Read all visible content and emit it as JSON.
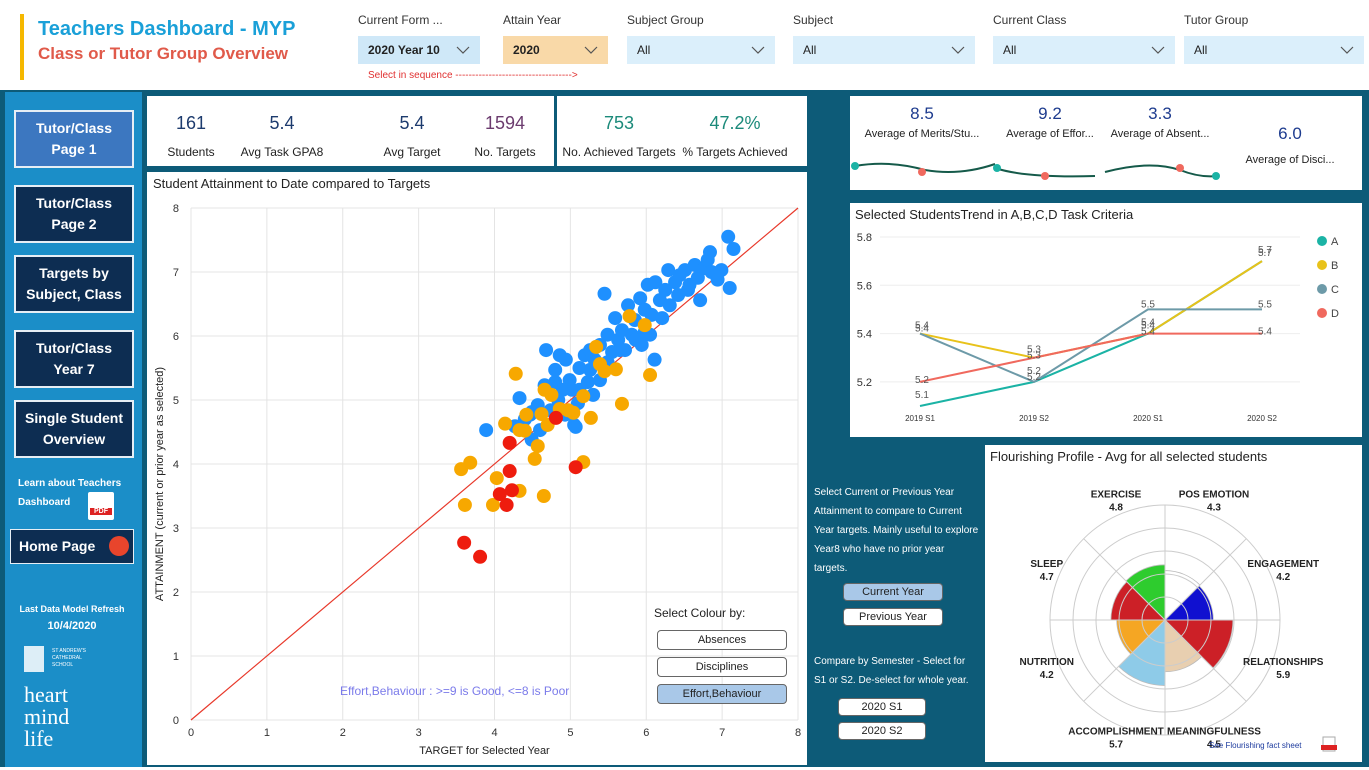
{
  "header": {
    "title": "Teachers Dashboard - MYP",
    "subtitle": "Class or Tutor Group Overview",
    "hint": "Select in sequence ----------------------------------->"
  },
  "filters": [
    {
      "label": "Current Form ...",
      "value": "2020 Year 10"
    },
    {
      "label": "Attain Year",
      "value": "2020"
    },
    {
      "label": "Subject Group",
      "value": "All"
    },
    {
      "label": "Subject",
      "value": "All"
    },
    {
      "label": "Current Class",
      "value": "All"
    },
    {
      "label": "Tutor Group",
      "value": "All"
    }
  ],
  "nav": {
    "buttons": [
      "Tutor/Class Page 1",
      "Tutor/Class Page 2",
      "Targets by Subject, Class",
      "Tutor/Class Year 7",
      "Single Student Overview"
    ],
    "learn": "Learn about Teachers Dashboard",
    "pdf": "PDF",
    "home": "Home Page",
    "refresh_label": "Last Data Model Refresh",
    "refresh_date": "10/4/2020",
    "school": "ST ANDREW'S CATHEDRAL SCHOOL",
    "motto": "heart mind life"
  },
  "kpis": [
    {
      "value": "161",
      "label": "Students"
    },
    {
      "value": "5.4",
      "label": "Avg Task GPA8"
    },
    {
      "value": "5.4",
      "label": "Avg Target"
    },
    {
      "value": "1594",
      "label": "No. Targets"
    },
    {
      "value": "753",
      "label": "No. Achieved Targets"
    },
    {
      "value": "47.2%",
      "label": "% Targets Achieved"
    }
  ],
  "kpis_right": [
    {
      "value": "8.5",
      "label": "Average of Merits/Stu..."
    },
    {
      "value": "9.2",
      "label": "Average of Effor..."
    },
    {
      "value": "3.3",
      "label": "Average of Absent..."
    },
    {
      "value": "6.0",
      "label": "Average of Disci..."
    }
  ],
  "controls": {
    "year_text": "Select Current or Previous Year Attainment to compare to Current Year targets. Mainly useful to explore Year8 who have no prior year targets.",
    "year_buttons": [
      "Current Year",
      "Previous Year"
    ],
    "semester_text": "Compare by Semester - Select for S1 or S2. De-select for whole year.",
    "semester_buttons": [
      "2020 S1",
      "2020 S2"
    ]
  },
  "chart_data": [
    {
      "type": "scatter",
      "title": "Student Attainment to Date compared to Targets",
      "x_label": "TARGET for Selected Year",
      "y_label": "ATTAINMENT (current or prior year as selected)",
      "xlim": [
        0,
        8
      ],
      "ylim": [
        0,
        8
      ],
      "xticks": [
        0,
        1,
        2,
        3,
        4,
        5,
        6,
        7,
        8
      ],
      "yticks": [
        0,
        1,
        2,
        3,
        4,
        5,
        6,
        7,
        8
      ],
      "grid": true,
      "reference_line_color": "#e8382a",
      "annotation": "Effort,Behaviour : >=9 is Good, <=8 is Poor",
      "colour_by": {
        "label": "Select Colour by:",
        "options": [
          "Absences",
          "Disciplines",
          "Effort,Behaviour"
        ],
        "selected": 2
      },
      "series": [
        {
          "color": "#1e90ff",
          "x": [
            3.89,
            4.27,
            4.47,
            4.57,
            4.66,
            4.68,
            4.8,
            4.86,
            4.94,
            4.99,
            5.07,
            5.1,
            5.12,
            5.19,
            5.26,
            5.32,
            5.39,
            5.45,
            5.49,
            5.55,
            5.59,
            5.63,
            5.68,
            5.72,
            5.76,
            5.81,
            5.85,
            5.92,
            5.94,
            5.98,
            6.02,
            6.05,
            6.11,
            6.12,
            6.18,
            6.21,
            6.25,
            6.29,
            6.31,
            6.38,
            6.42,
            6.44,
            6.51,
            6.55,
            6.57,
            6.64,
            6.68,
            6.71,
            6.77,
            6.81,
            6.84,
            6.86,
            6.94,
            6.99,
            7.08,
            7.1,
            7.15,
            4.33,
            4.4,
            4.49,
            4.6,
            4.74,
            4.84,
            4.93,
            5.02,
            5.12,
            5.23,
            5.3,
            5.39,
            5.49,
            5.65,
            5.86,
            5.98,
            6.07,
            4.49,
            4.8,
            4.9,
            5.05,
            5.26
          ],
          "y": [
            4.53,
            4.59,
            4.77,
            4.92,
            5.23,
            5.78,
            5.28,
            5.7,
            5.63,
            5.31,
            4.58,
            4.95,
            5.5,
            5.7,
            5.47,
            5.63,
            5.86,
            6.66,
            6.02,
            5.75,
            6.28,
            5.94,
            6.09,
            5.78,
            6.48,
            6.02,
            6.25,
            6.59,
            5.86,
            6.41,
            6.8,
            6.02,
            5.63,
            6.84,
            6.56,
            6.28,
            6.72,
            7.03,
            6.48,
            6.84,
            6.64,
            6.95,
            7.03,
            6.72,
            6.8,
            7.11,
            6.91,
            6.56,
            7.06,
            7.19,
            7.31,
            7.0,
            6.88,
            7.03,
            7.55,
            6.75,
            7.36,
            5.03,
            4.7,
            4.38,
            4.53,
            4.84,
            5.0,
            4.77,
            5.16,
            5.16,
            5.28,
            5.08,
            5.31,
            5.59,
            5.78,
            5.94,
            6.06,
            6.33,
            4.81,
            5.47,
            5.16,
            4.61,
            5.78
          ]
        },
        {
          "color": "#f7a800",
          "x": [
            3.56,
            3.68,
            3.61,
            3.98,
            4.03,
            4.14,
            4.28,
            4.33,
            4.4,
            4.53,
            4.65,
            4.57,
            4.62,
            4.66,
            4.75,
            4.86,
            4.97,
            5.17,
            5.27,
            5.34,
            5.39,
            5.6,
            5.68,
            5.78,
            5.98,
            6.05,
            4.33,
            4.7,
            5.04,
            4.42,
            5.17,
            5.45
          ],
          "y": [
            3.92,
            4.02,
            3.36,
            3.36,
            3.78,
            4.63,
            5.41,
            3.58,
            4.52,
            4.08,
            3.5,
            4.28,
            4.78,
            5.16,
            5.08,
            4.86,
            4.84,
            4.03,
            4.72,
            5.83,
            5.56,
            5.48,
            4.94,
            6.31,
            6.17,
            5.39,
            4.53,
            4.61,
            4.8,
            4.77,
            5.06,
            5.45
          ]
        },
        {
          "color": "#ee1c0e",
          "x": [
            3.6,
            3.81,
            4.07,
            4.23,
            4.16,
            4.2,
            4.2,
            5.07,
            4.81
          ],
          "y": [
            2.77,
            2.55,
            3.53,
            3.59,
            3.36,
            3.89,
            4.33,
            3.95,
            4.72
          ]
        }
      ]
    },
    {
      "type": "line",
      "title": "Selected StudentsTrend in A,B,C,D Task Criteria",
      "categories": [
        "2019 S1",
        "2019 S2",
        "2020 S1",
        "2020 S2"
      ],
      "ylim": [
        5.1,
        5.8
      ],
      "yticks": [
        5.2,
        5.4,
        5.6,
        5.8
      ],
      "data_labels": true,
      "series": [
        {
          "name": "A",
          "color": "#1bb3a5",
          "values": [
            5.1,
            5.2,
            5.4,
            5.7
          ]
        },
        {
          "name": "B",
          "color": "#e8c21a",
          "values": [
            5.4,
            5.3,
            5.4,
            5.7
          ]
        },
        {
          "name": "C",
          "color": "#6d9aa8",
          "values": [
            5.4,
            5.2,
            5.5,
            5.5
          ]
        },
        {
          "name": "D",
          "color": "#f0695e",
          "values": [
            5.2,
            5.3,
            5.4,
            5.4
          ]
        }
      ]
    },
    {
      "type": "polar-area",
      "title": "Flourishing Profile - Avg for all selected students",
      "categories": [
        "POS EMOTION",
        "ENGAGEMENT",
        "RELATIONSHIPS",
        "MEANINGFULNESS",
        "ACCOMPLISHMENT",
        "NUTRITION",
        "SLEEP",
        "EXERCISE"
      ],
      "values": [
        4.3,
        4.2,
        5.9,
        4.5,
        5.7,
        4.2,
        4.7,
        4.8
      ],
      "colors": [
        "#ffffff",
        "#1010d0",
        "#cc2027",
        "#e8cfb0",
        "#8ecbe8",
        "#f5a623",
        "#cc2027",
        "#2ecc2e"
      ],
      "rlim": [
        0,
        10
      ],
      "rticks": [
        2,
        4,
        6,
        8,
        10
      ],
      "link": "See Flourishing fact sheet"
    }
  ]
}
